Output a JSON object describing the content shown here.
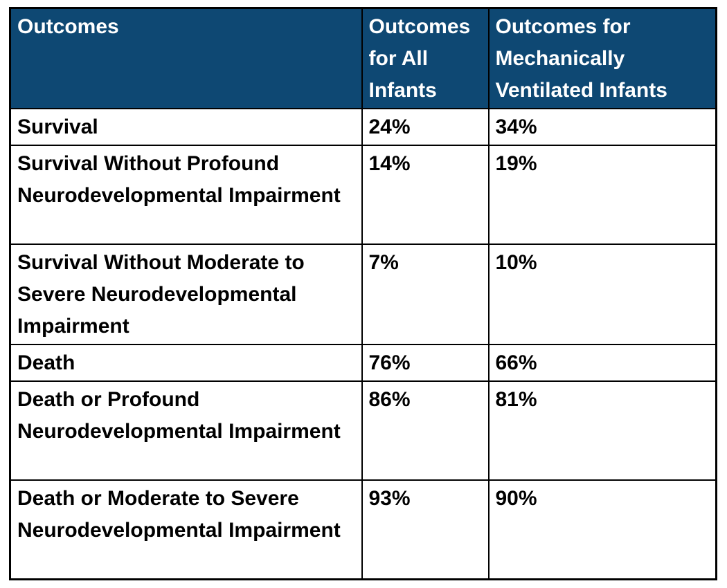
{
  "page": {
    "background_color": "#ffffff",
    "border_color": "#000000",
    "body_text_color": "#000000"
  },
  "table": {
    "header_background_color": "#0e4873",
    "header_text_color": "#ffffff",
    "columns": [
      "Outcomes",
      "Outcomes for All Infants",
      "Outcomes for Mechanically Ventilated Infants"
    ],
    "rows": [
      {
        "outcome": "Survival",
        "all_infants": "24%",
        "mechanically_ventilated": "34%"
      },
      {
        "outcome": "Survival Without Profound Neurodevelopmental Impairment",
        "all_infants": "14%",
        "mechanically_ventilated": "19%"
      },
      {
        "outcome": "Survival Without Moderate to Severe Neurodevelopmental Impairment",
        "all_infants": "7%",
        "mechanically_ventilated": "10%"
      },
      {
        "outcome": "Death",
        "all_infants": "76%",
        "mechanically_ventilated": "66%"
      },
      {
        "outcome": "Death or Profound Neurodevelopmental Impairment",
        "all_infants": "86%",
        "mechanically_ventilated": "81%"
      },
      {
        "outcome": "Death or Moderate to Severe Neurodevelopmental Impairment",
        "all_infants": "93%",
        "mechanically_ventilated": "90%"
      }
    ]
  }
}
